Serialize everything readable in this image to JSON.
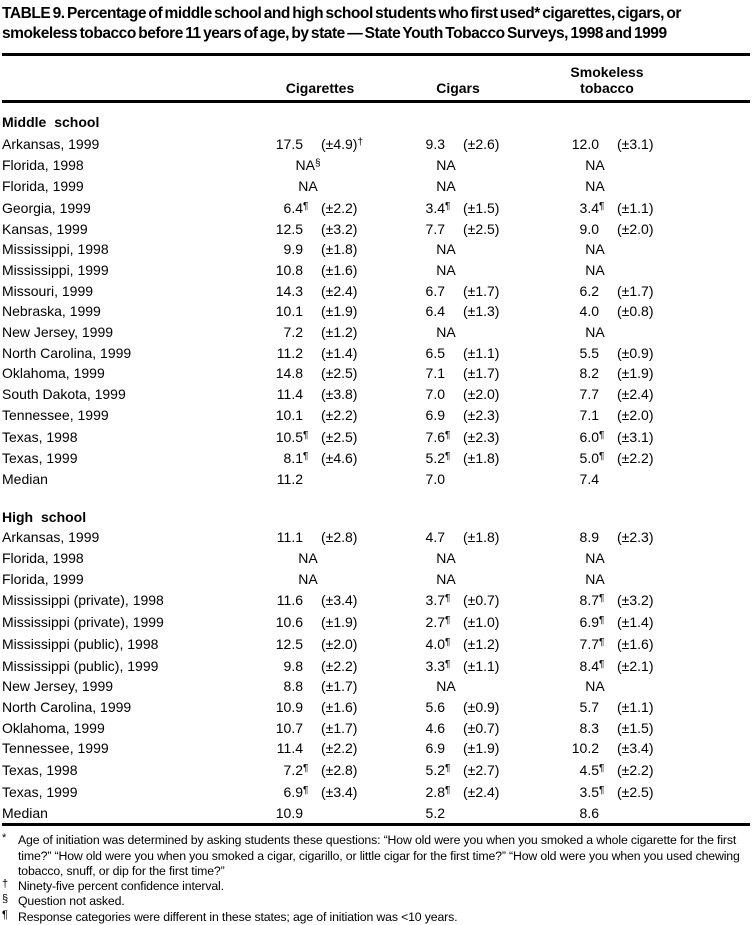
{
  "title": "TABLE 9. Percentage of middle school and high school students who first used* cigarettes, cigars, or smokeless tobacco before 11 years of age, by state — State Youth Tobacco Surveys, 1998 and 1999",
  "table": {
    "columns": [
      "Cigarettes",
      "Cigars",
      "Smokeless tobacco"
    ],
    "sections": [
      {
        "label": "Middle school",
        "rows": [
          {
            "state": "Arkansas, 1999",
            "cells": [
              {
                "v": "17.5",
                "vs": "",
                "ci": "(±4.9)",
                "cis": "†"
              },
              {
                "v": "9.3",
                "vs": "",
                "ci": "(±2.6)",
                "cis": ""
              },
              {
                "v": "12.0",
                "vs": "",
                "ci": "(±3.1)",
                "cis": ""
              }
            ]
          },
          {
            "state": "Florida, 1998",
            "cells": [
              {
                "na": "NA",
                "nas": "§"
              },
              {
                "na": "NA",
                "nas": ""
              },
              {
                "na": "NA",
                "nas": ""
              }
            ]
          },
          {
            "state": "Florida, 1999",
            "cells": [
              {
                "na": "NA",
                "nas": ""
              },
              {
                "na": "NA",
                "nas": ""
              },
              {
                "na": "NA",
                "nas": ""
              }
            ]
          },
          {
            "state": "Georgia, 1999",
            "cells": [
              {
                "v": "6.4",
                "vs": "¶",
                "ci": "(±2.2)",
                "cis": ""
              },
              {
                "v": "3.4",
                "vs": "¶",
                "ci": "(±1.5)",
                "cis": ""
              },
              {
                "v": "3.4",
                "vs": "¶",
                "ci": "(±1.1)",
                "cis": ""
              }
            ]
          },
          {
            "state": "Kansas, 1999",
            "cells": [
              {
                "v": "12.5",
                "vs": "",
                "ci": "(±3.2)",
                "cis": ""
              },
              {
                "v": "7.7",
                "vs": "",
                "ci": "(±2.5)",
                "cis": ""
              },
              {
                "v": "9.0",
                "vs": "",
                "ci": "(±2.0)",
                "cis": ""
              }
            ]
          },
          {
            "state": "Mississippi, 1998",
            "cells": [
              {
                "v": "9.9",
                "vs": "",
                "ci": "(±1.8)",
                "cis": ""
              },
              {
                "na": "NA",
                "nas": ""
              },
              {
                "na": "NA",
                "nas": ""
              }
            ]
          },
          {
            "state": "Mississippi, 1999",
            "cells": [
              {
                "v": "10.8",
                "vs": "",
                "ci": "(±1.6)",
                "cis": ""
              },
              {
                "na": "NA",
                "nas": ""
              },
              {
                "na": "NA",
                "nas": ""
              }
            ]
          },
          {
            "state": "Missouri, 1999",
            "cells": [
              {
                "v": "14.3",
                "vs": "",
                "ci": "(±2.4)",
                "cis": ""
              },
              {
                "v": "6.7",
                "vs": "",
                "ci": "(±1.7)",
                "cis": ""
              },
              {
                "v": "6.2",
                "vs": "",
                "ci": "(±1.7)",
                "cis": ""
              }
            ]
          },
          {
            "state": "Nebraska, 1999",
            "cells": [
              {
                "v": "10.1",
                "vs": "",
                "ci": "(±1.9)",
                "cis": ""
              },
              {
                "v": "6.4",
                "vs": "",
                "ci": "(±1.3)",
                "cis": ""
              },
              {
                "v": "4.0",
                "vs": "",
                "ci": "(±0.8)",
                "cis": ""
              }
            ]
          },
          {
            "state": "New Jersey, 1999",
            "cells": [
              {
                "v": "7.2",
                "vs": "",
                "ci": "(±1.2)",
                "cis": ""
              },
              {
                "na": "NA",
                "nas": ""
              },
              {
                "na": "NA",
                "nas": ""
              }
            ]
          },
          {
            "state": "North Carolina, 1999",
            "cells": [
              {
                "v": "11.2",
                "vs": "",
                "ci": "(±1.4)",
                "cis": ""
              },
              {
                "v": "6.5",
                "vs": "",
                "ci": "(±1.1)",
                "cis": ""
              },
              {
                "v": "5.5",
                "vs": "",
                "ci": "(±0.9)",
                "cis": ""
              }
            ]
          },
          {
            "state": "Oklahoma, 1999",
            "cells": [
              {
                "v": "14.8",
                "vs": "",
                "ci": "(±2.5)",
                "cis": ""
              },
              {
                "v": "7.1",
                "vs": "",
                "ci": "(±1.7)",
                "cis": ""
              },
              {
                "v": "8.2",
                "vs": "",
                "ci": "(±1.9)",
                "cis": ""
              }
            ]
          },
          {
            "state": "South Dakota, 1999",
            "cells": [
              {
                "v": "11.4",
                "vs": "",
                "ci": "(±3.8)",
                "cis": ""
              },
              {
                "v": "7.0",
                "vs": "",
                "ci": "(±2.0)",
                "cis": ""
              },
              {
                "v": "7.7",
                "vs": "",
                "ci": "(±2.4)",
                "cis": ""
              }
            ]
          },
          {
            "state": "Tennessee, 1999",
            "cells": [
              {
                "v": "10.1",
                "vs": "",
                "ci": "(±2.2)",
                "cis": ""
              },
              {
                "v": "6.9",
                "vs": "",
                "ci": "(±2.3)",
                "cis": ""
              },
              {
                "v": "7.1",
                "vs": "",
                "ci": "(±2.0)",
                "cis": ""
              }
            ]
          },
          {
            "state": "Texas, 1998",
            "cells": [
              {
                "v": "10.5",
                "vs": "¶",
                "ci": "(±2.5)",
                "cis": ""
              },
              {
                "v": "7.6",
                "vs": "¶",
                "ci": "(±2.3)",
                "cis": ""
              },
              {
                "v": "6.0",
                "vs": "¶",
                "ci": "(±3.1)",
                "cis": ""
              }
            ]
          },
          {
            "state": "Texas, 1999",
            "cells": [
              {
                "v": "8.1",
                "vs": "¶",
                "ci": "(±4.6)",
                "cis": ""
              },
              {
                "v": "5.2",
                "vs": "¶",
                "ci": "(±1.8)",
                "cis": ""
              },
              {
                "v": "5.0",
                "vs": "¶",
                "ci": "(±2.2)",
                "cis": ""
              }
            ]
          },
          {
            "state": "Median",
            "cells": [
              {
                "v": "11.2",
                "vs": "",
                "ci": "",
                "cis": ""
              },
              {
                "v": "7.0",
                "vs": "",
                "ci": "",
                "cis": ""
              },
              {
                "v": "7.4",
                "vs": "",
                "ci": "",
                "cis": ""
              }
            ]
          }
        ]
      },
      {
        "label": "High school",
        "rows": [
          {
            "state": "Arkansas, 1999",
            "cells": [
              {
                "v": "11.1",
                "vs": "",
                "ci": "(±2.8)",
                "cis": ""
              },
              {
                "v": "4.7",
                "vs": "",
                "ci": "(±1.8)",
                "cis": ""
              },
              {
                "v": "8.9",
                "vs": "",
                "ci": "(±2.3)",
                "cis": ""
              }
            ]
          },
          {
            "state": "Florida, 1998",
            "cells": [
              {
                "na": "NA",
                "nas": ""
              },
              {
                "na": "NA",
                "nas": ""
              },
              {
                "na": "NA",
                "nas": ""
              }
            ]
          },
          {
            "state": "Florida, 1999",
            "cells": [
              {
                "na": "NA",
                "nas": ""
              },
              {
                "na": "NA",
                "nas": ""
              },
              {
                "na": "NA",
                "nas": ""
              }
            ]
          },
          {
            "state": "Mississippi (private), 1998",
            "cells": [
              {
                "v": "11.6",
                "vs": "",
                "ci": "(±3.4)",
                "cis": ""
              },
              {
                "v": "3.7",
                "vs": "¶",
                "ci": "(±0.7)",
                "cis": ""
              },
              {
                "v": "8.7",
                "vs": "¶",
                "ci": "(±3.2)",
                "cis": ""
              }
            ]
          },
          {
            "state": "Mississippi (private), 1999",
            "cells": [
              {
                "v": "10.6",
                "vs": "",
                "ci": "(±1.9)",
                "cis": ""
              },
              {
                "v": "2.7",
                "vs": "¶",
                "ci": "(±1.0)",
                "cis": ""
              },
              {
                "v": "6.9",
                "vs": "¶",
                "ci": "(±1.4)",
                "cis": ""
              }
            ]
          },
          {
            "state": "Mississippi (public), 1998",
            "cells": [
              {
                "v": "12.5",
                "vs": "",
                "ci": "(±2.0)",
                "cis": ""
              },
              {
                "v": "4.0",
                "vs": "¶",
                "ci": "(±1.2)",
                "cis": ""
              },
              {
                "v": "7.7",
                "vs": "¶",
                "ci": "(±1.6)",
                "cis": ""
              }
            ]
          },
          {
            "state": "Mississippi (public), 1999",
            "cells": [
              {
                "v": "9.8",
                "vs": "",
                "ci": "(±2.2)",
                "cis": ""
              },
              {
                "v": "3.3",
                "vs": "¶",
                "ci": "(±1.1)",
                "cis": ""
              },
              {
                "v": "8.4",
                "vs": "¶",
                "ci": "(±2.1)",
                "cis": ""
              }
            ]
          },
          {
            "state": "New Jersey, 1999",
            "cells": [
              {
                "v": "8.8",
                "vs": "",
                "ci": "(±1.7)",
                "cis": ""
              },
              {
                "na": "NA",
                "nas": ""
              },
              {
                "na": "NA",
                "nas": ""
              }
            ]
          },
          {
            "state": "North Carolina, 1999",
            "cells": [
              {
                "v": "10.9",
                "vs": "",
                "ci": "(±1.6)",
                "cis": ""
              },
              {
                "v": "5.6",
                "vs": "",
                "ci": "(±0.9)",
                "cis": ""
              },
              {
                "v": "5.7",
                "vs": "",
                "ci": "(±1.1)",
                "cis": ""
              }
            ]
          },
          {
            "state": "Oklahoma, 1999",
            "cells": [
              {
                "v": "10.7",
                "vs": "",
                "ci": "(±1.7)",
                "cis": ""
              },
              {
                "v": "4.6",
                "vs": "",
                "ci": "(±0.7)",
                "cis": ""
              },
              {
                "v": "8.3",
                "vs": "",
                "ci": "(±1.5)",
                "cis": ""
              }
            ]
          },
          {
            "state": "Tennessee, 1999",
            "cells": [
              {
                "v": "11.4",
                "vs": "",
                "ci": "(±2.2)",
                "cis": ""
              },
              {
                "v": "6.9",
                "vs": "",
                "ci": "(±1.9)",
                "cis": ""
              },
              {
                "v": "10.2",
                "vs": "",
                "ci": "(±3.4)",
                "cis": ""
              }
            ]
          },
          {
            "state": "Texas, 1998",
            "cells": [
              {
                "v": "7.2",
                "vs": "¶",
                "ci": "(±2.8)",
                "cis": ""
              },
              {
                "v": "5.2",
                "vs": "¶",
                "ci": "(±2.7)",
                "cis": ""
              },
              {
                "v": "4.5",
                "vs": "¶",
                "ci": "(±2.2)",
                "cis": ""
              }
            ]
          },
          {
            "state": "Texas, 1999",
            "cells": [
              {
                "v": "6.9",
                "vs": "¶",
                "ci": "(±3.4)",
                "cis": ""
              },
              {
                "v": "2.8",
                "vs": "¶",
                "ci": "(±2.4)",
                "cis": ""
              },
              {
                "v": "3.5",
                "vs": "¶",
                "ci": "(±2.5)",
                "cis": ""
              }
            ]
          },
          {
            "state": "Median",
            "cells": [
              {
                "v": "10.9",
                "vs": "",
                "ci": "",
                "cis": ""
              },
              {
                "v": "5.2",
                "vs": "",
                "ci": "",
                "cis": ""
              },
              {
                "v": "8.6",
                "vs": "",
                "ci": "",
                "cis": ""
              }
            ]
          }
        ]
      }
    ]
  },
  "footnotes": [
    {
      "mark": "*",
      "text": "Age of initiation was determined by asking students these questions: “How old were you when you smoked a whole cigarette for the first time?” “How old were you when you smoked a cigar, cigarillo, or little cigar for the first time?” “How old were you when you used chewing tobacco, snuff, or dip for the first time?”"
    },
    {
      "mark": "†",
      "text": "Ninety-five percent confidence interval."
    },
    {
      "mark": "§",
      "text": "Question not asked."
    },
    {
      "mark": "¶",
      "text": "Response categories were different in these states; age of initiation was <10 years."
    }
  ]
}
